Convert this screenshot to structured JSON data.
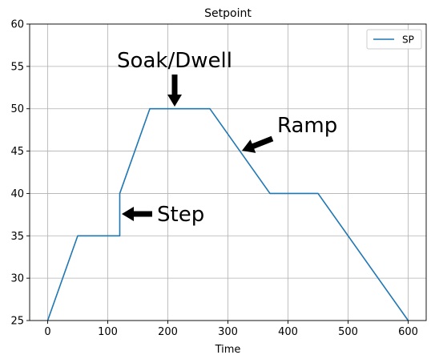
{
  "chart_data": {
    "type": "line",
    "title": "Setpoint",
    "xlabel": "Time",
    "ylabel": "",
    "xlim": [
      -30,
      630
    ],
    "ylim": [
      25,
      60
    ],
    "xticks": [
      0,
      100,
      200,
      300,
      400,
      500,
      600
    ],
    "yticks": [
      25,
      30,
      35,
      40,
      45,
      50,
      55,
      60
    ],
    "grid": true,
    "legend": "top-right",
    "series": [
      {
        "name": "SP",
        "color": "#1f77b4",
        "x": [
          0,
          50,
          120,
          120,
          170,
          270,
          370,
          450,
          600
        ],
        "y": [
          25,
          35,
          35,
          40,
          50,
          50,
          40,
          40,
          25
        ]
      }
    ],
    "annotations": [
      {
        "text": "Soak/Dwell",
        "target": [
          210,
          50
        ],
        "text_anchor_point": [
          210,
          55
        ]
      },
      {
        "text": "Step",
        "target": [
          120,
          37.5
        ],
        "text_anchor_point": [
          180,
          37.5
        ]
      },
      {
        "text": "Ramp",
        "target": [
          320,
          45
        ],
        "text_anchor_point": [
          380,
          47
        ]
      }
    ]
  }
}
